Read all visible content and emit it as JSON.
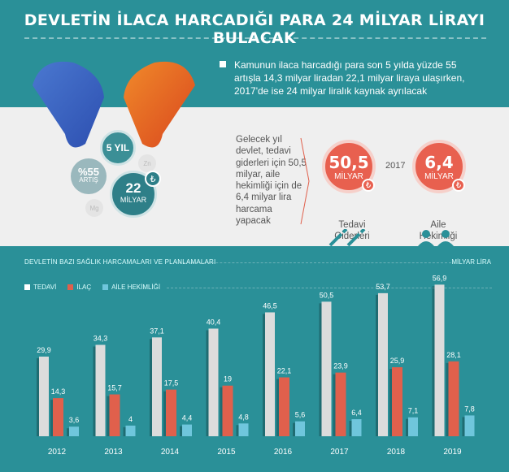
{
  "header": {
    "title": "DEVLETİN İLACA HARCADIĞI PARA 24 MİLYAR LİRAYI BULACAK",
    "intro": "Kamunun ilaca harcadığı para son 5 yılda yüzde 55 artışla 14,3 milyar liradan 22,1 milyar liraya ulaşırken, 2017'de ise 24 milyar liralık kaynak ayrılacak"
  },
  "bubbles": {
    "years": "5 YIL",
    "pct": "%55",
    "pct_label": "ARTIŞ",
    "amount": "22",
    "amount_unit": "MİLYAR",
    "lira": "₺",
    "zn": "Zn",
    "mg": "Mg"
  },
  "forecast": {
    "text": "Gelecek yıl devlet, tedavi giderleri için 50,5 milyar, aile hekimliği için de 6,4 milyar lira harcama yapacak",
    "year": "2017",
    "items": [
      {
        "value": "50,5",
        "unit": "MİLYAR",
        "label": "Tedavi Giderleri"
      },
      {
        "value": "6,4",
        "unit": "MİLYAR",
        "label": "Aile Hekimliği"
      }
    ]
  },
  "colors": {
    "teal": "#2a9098",
    "tedavi": "#dcdcdc",
    "ilac": "#e0604c",
    "aile": "#6fc6dc"
  },
  "chart_data": {
    "type": "bar",
    "title": "DEVLETİN BAZI SAĞLIK HARCAMALARI VE PLANLAMALARI",
    "unit": "MİLYAR LİRA",
    "legend": "top-left",
    "categories": [
      "2012",
      "2013",
      "2014",
      "2015",
      "2016",
      "2017",
      "2018",
      "2019"
    ],
    "series": [
      {
        "name": "TEDAVİ",
        "values": [
          29.9,
          34.3,
          37.1,
          40.4,
          46.5,
          50.5,
          53.7,
          56.9
        ],
        "labels": [
          "29,9",
          "34,3",
          "37,1",
          "40,4",
          "46,5",
          "50,5",
          "53,7",
          "56,9"
        ]
      },
      {
        "name": "İLAÇ",
        "values": [
          14.3,
          15.7,
          17.5,
          19,
          22.1,
          23.9,
          25.9,
          28.1
        ],
        "labels": [
          "14,3",
          "15,7",
          "17,5",
          "19",
          "22,1",
          "23,9",
          "25,9",
          "28,1"
        ]
      },
      {
        "name": "AİLE HEKİMLİĞİ",
        "values": [
          3.6,
          4,
          4.4,
          4.8,
          5.6,
          6.4,
          7.1,
          7.8
        ],
        "labels": [
          "3,6",
          "4",
          "4,4",
          "4,8",
          "5,6",
          "6,4",
          "7,1",
          "7,8"
        ]
      }
    ]
  }
}
